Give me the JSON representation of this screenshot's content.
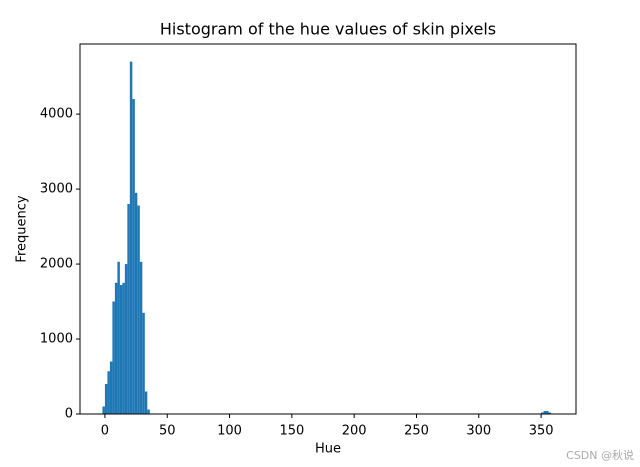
{
  "chart_data": {
    "type": "histogram",
    "title": "Histogram of the hue values of skin pixels",
    "x_label": "Hue",
    "y_label": "Frequency",
    "color": "#1f77b4",
    "bins": [
      -2,
      0,
      2,
      4,
      6,
      8,
      10,
      12,
      14,
      16,
      18,
      20,
      22,
      24,
      26,
      28,
      30,
      32,
      34,
      36,
      350,
      352,
      354,
      356,
      358,
      360
    ],
    "counts": [
      100,
      400,
      570,
      700,
      1500,
      1750,
      2030,
      1720,
      1750,
      2000,
      2800,
      4700,
      4200,
      2950,
      2780,
      2030,
      1350,
      300,
      60,
      0,
      20,
      40,
      40,
      20,
      0
    ],
    "xlim": [
      -20,
      378
    ],
    "ylim": [
      0,
      4935
    ],
    "xticks": [
      0,
      50,
      100,
      150,
      200,
      250,
      300,
      350
    ],
    "yticks": [
      0,
      1000,
      2000,
      3000,
      4000
    ],
    "watermark": "CSDN @秋说"
  }
}
